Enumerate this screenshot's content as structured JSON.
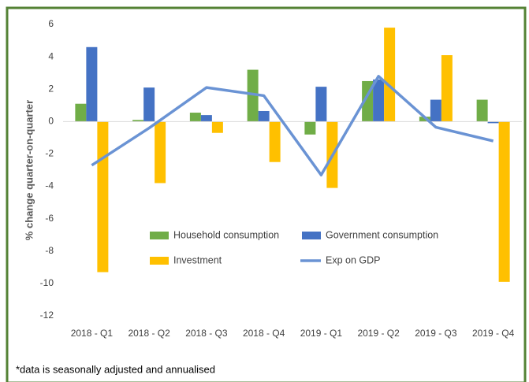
{
  "chart_data": {
    "type": "bar",
    "y_label": "% change quarter-on-quarter",
    "note": "*data is seasonally adjusted and annualised",
    "categories": [
      "2018 - Q1",
      "2018 - Q2",
      "2018 - Q3",
      "2018 - Q4",
      "2019 - Q1",
      "2019 - Q2",
      "2019 - Q3",
      "2019 - Q4"
    ],
    "series": [
      {
        "name": "Household consumption",
        "type": "bar",
        "color": "#70ad47",
        "values": [
          1.1,
          0.1,
          0.55,
          3.2,
          -0.8,
          2.5,
          0.3,
          1.35
        ]
      },
      {
        "name": "Government consumption",
        "type": "bar",
        "color": "#4472c4",
        "values": [
          4.6,
          2.1,
          0.4,
          0.65,
          2.15,
          2.6,
          1.35,
          -0.1
        ]
      },
      {
        "name": "Investment",
        "type": "bar",
        "color": "#ffc000",
        "values": [
          -9.3,
          -3.8,
          -0.7,
          -2.5,
          -4.1,
          5.8,
          4.1,
          -9.9
        ]
      },
      {
        "name": "Exp on GDP",
        "type": "line",
        "color": "#6a93d4",
        "values": [
          -2.7,
          -0.4,
          2.1,
          1.6,
          -3.3,
          2.8,
          -0.35,
          -1.2
        ]
      }
    ],
    "ylim": [
      -12,
      6
    ],
    "yticks": [
      -12,
      -10,
      -8,
      -6,
      -4,
      -2,
      0,
      2,
      4,
      6
    ],
    "grid": false
  }
}
